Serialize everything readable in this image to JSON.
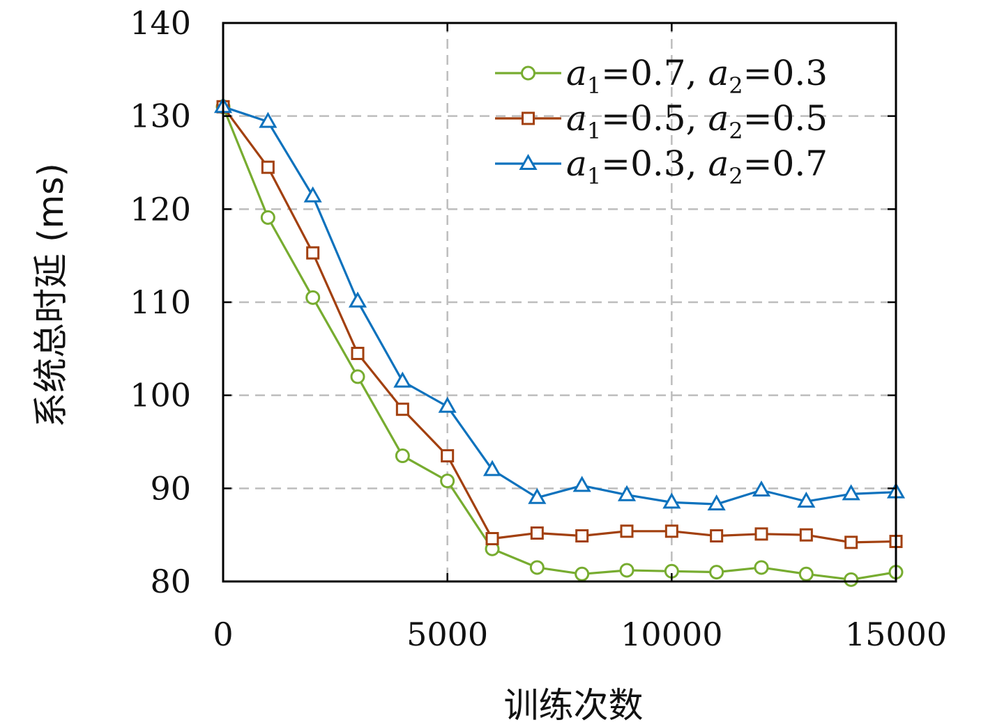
{
  "chart_data": {
    "type": "line",
    "title": "",
    "xlabel": "训练次数",
    "ylabel": "系统总时延 (ms)",
    "xlim": [
      0,
      15000
    ],
    "ylim": [
      80,
      140
    ],
    "xticks": [
      0,
      5000,
      10000,
      15000
    ],
    "yticks": [
      80,
      90,
      100,
      110,
      120,
      130,
      140
    ],
    "grid": true,
    "legend_position": "top-right",
    "x": [
      0,
      1000,
      2000,
      3000,
      4000,
      5000,
      6000,
      7000,
      8000,
      9000,
      10000,
      11000,
      12000,
      13000,
      14000,
      15000
    ],
    "series": [
      {
        "legend": {
          "a": "a",
          "sub1": "1",
          "v1": "=0.7,",
          "b": "a",
          "sub2": "2",
          "v2": "=0.3"
        },
        "color": "#77ac30",
        "marker": "circle",
        "values": [
          131,
          119.1,
          110.5,
          102,
          93.5,
          90.8,
          83.5,
          81.5,
          80.8,
          81.2,
          81.1,
          81,
          81.5,
          80.8,
          80.2,
          81
        ]
      },
      {
        "legend": {
          "a": "a",
          "sub1": "1",
          "v1": "=0.5,",
          "b": "a",
          "sub2": "2",
          "v2": "=0.5"
        },
        "color": "#a2400f",
        "marker": "square",
        "values": [
          131,
          124.5,
          115.3,
          104.5,
          98.5,
          93.5,
          84.6,
          85.2,
          84.9,
          85.4,
          85.4,
          84.9,
          85.1,
          85,
          84.2,
          84.3
        ]
      },
      {
        "legend": {
          "a": "a",
          "sub1": "1",
          "v1": "=0.3,",
          "b": "a",
          "sub2": "2",
          "v2": "=0.7"
        },
        "color": "#0e72bd",
        "marker": "triangle",
        "values": [
          131,
          129.4,
          121.4,
          110.1,
          101.5,
          98.8,
          92,
          89,
          90.3,
          89.3,
          88.5,
          88.3,
          89.8,
          88.6,
          89.4,
          89.6
        ]
      }
    ]
  }
}
